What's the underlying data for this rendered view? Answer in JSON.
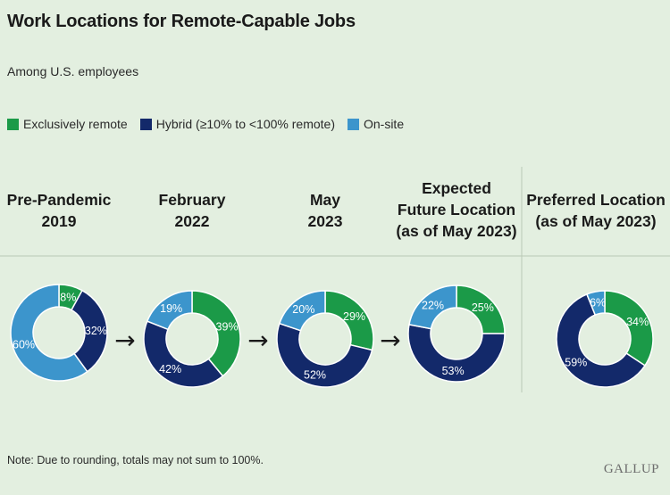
{
  "header": {
    "title": "Work Locations for Remote-Capable Jobs",
    "subtitle": "Among U.S. employees"
  },
  "legend": [
    {
      "label": "Exclusively remote",
      "color": "#1b9a48"
    },
    {
      "label": "Hybrid (≥10% to <100% remote)",
      "color": "#13296a"
    },
    {
      "label": "On-site",
      "color": "#3c95cc"
    }
  ],
  "columns": [
    {
      "header_line1": "Pre-Pandemic",
      "header_line2": "2019",
      "header_line3": ""
    },
    {
      "header_line1": "February",
      "header_line2": "2022",
      "header_line3": ""
    },
    {
      "header_line1": "May",
      "header_line2": "2023",
      "header_line3": ""
    },
    {
      "header_line1": "Expected",
      "header_line2": "Future Location",
      "header_line3": "(as of May 2023)"
    },
    {
      "header_line1": "Preferred Location",
      "header_line2": "(as of May 2023)",
      "header_line3": ""
    }
  ],
  "chart_data": {
    "type": "pie",
    "style": "donut",
    "series_names": [
      "Exclusively remote",
      "Hybrid (≥10% to <100% remote)",
      "On-site"
    ],
    "charts": [
      {
        "name": "Pre-Pandemic 2019",
        "values": [
          8,
          32,
          60
        ],
        "labels": [
          "8%",
          "32%",
          "60%"
        ]
      },
      {
        "name": "February 2022",
        "values": [
          39,
          42,
          19
        ],
        "labels": [
          "39%",
          "42%",
          "19%"
        ]
      },
      {
        "name": "May 2023",
        "values": [
          29,
          52,
          20
        ],
        "labels": [
          "29%",
          "52%",
          "20%"
        ]
      },
      {
        "name": "Expected Future Location (as of May 2023)",
        "values": [
          25,
          53,
          22
        ],
        "labels": [
          "25%",
          "53%",
          "22%"
        ]
      },
      {
        "name": "Preferred Location (as of May 2023)",
        "values": [
          34,
          59,
          6
        ],
        "labels": [
          "34%",
          "59%",
          "6%"
        ]
      }
    ]
  },
  "arrows": [
    "→",
    "→",
    "→"
  ],
  "footer": {
    "note": "Note: Due to rounding, totals may not sum to 100%.",
    "brand": "GALLUP"
  }
}
